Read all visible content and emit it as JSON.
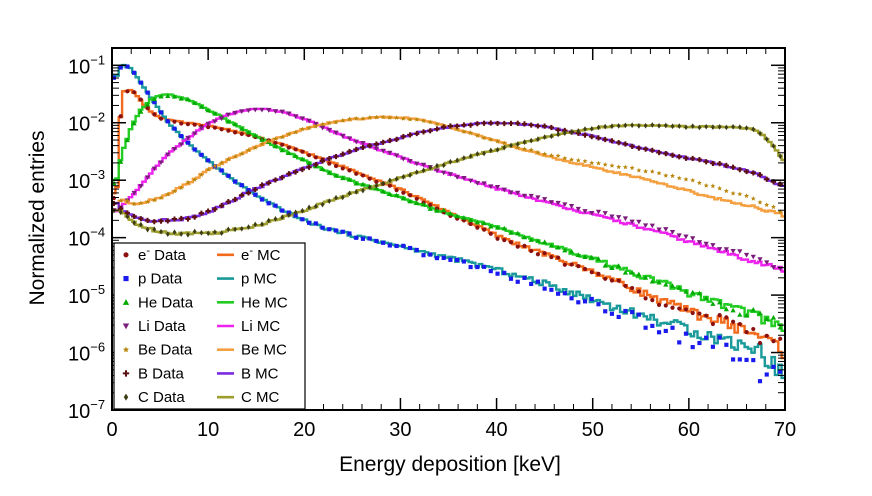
{
  "chart_data": {
    "type": "line",
    "title": "",
    "xlabel": "Energy deposition [keV]",
    "ylabel": "Normalized entries",
    "xlim": [
      0,
      70
    ],
    "ylim": [
      1e-07,
      0.2
    ],
    "yscale": "log",
    "x_ticks": [
      0,
      10,
      20,
      30,
      40,
      50,
      60,
      70
    ],
    "x_tick_labels": [
      "0",
      "10",
      "20",
      "30",
      "40",
      "50",
      "60",
      "70"
    ],
    "y_ticks": [
      1e-07,
      1e-06,
      1e-05,
      0.0001,
      0.001,
      0.01,
      0.1
    ],
    "y_tick_bases": [
      "10",
      "10",
      "10",
      "10",
      "10",
      "10",
      "10"
    ],
    "y_tick_exponents": [
      "−7",
      "−6",
      "−5",
      "−4",
      "−3",
      "−2",
      "−1"
    ],
    "legend_position": "bottom-left",
    "x": [
      0.5,
      1,
      2,
      3,
      4,
      5,
      6,
      8,
      10,
      12,
      14,
      16,
      18,
      20,
      22,
      25,
      28,
      30,
      32,
      35,
      38,
      40,
      42,
      45,
      48,
      50,
      52,
      55,
      58,
      60,
      62,
      65,
      67,
      68,
      69,
      70
    ],
    "series": [
      {
        "name": "e- Data",
        "label_base": "e",
        "label_sup": "-",
        "label_rest": " Data",
        "kind": "data",
        "marker": "circle",
        "color": "#8b1010",
        "values": [
          0.0005,
          0.03,
          0.04,
          0.025,
          0.016,
          0.012,
          0.0105,
          0.0095,
          0.0085,
          0.0075,
          0.0062,
          0.005,
          0.0039,
          0.003,
          0.0022,
          0.0014,
          0.0009,
          0.00065,
          0.00045,
          0.00026,
          0.00015,
          0.0001,
          7.5e-05,
          5e-05,
          3.3e-05,
          2.5e-05,
          1.8e-05,
          1.1e-05,
          7e-06,
          5e-06,
          4.2e-06,
          2.8e-06,
          2.2e-06,
          1.8e-06,
          1.5e-06,
          1.2e-06
        ]
      },
      {
        "name": "p Data",
        "label_base": "p",
        "label_sup": "",
        "label_rest": " Data",
        "kind": "data",
        "marker": "square",
        "color": "#1a1aee",
        "values": [
          0.06,
          0.1,
          0.09,
          0.05,
          0.028,
          0.016,
          0.0095,
          0.0043,
          0.0022,
          0.0012,
          0.0007,
          0.00043,
          0.00029,
          0.0002,
          0.00015,
          0.00011,
          8.5e-05,
          7e-05,
          5.5e-05,
          4.2e-05,
          3.1e-05,
          2.5e-05,
          2e-05,
          1.4e-05,
          9.5e-06,
          7.2e-06,
          5.5e-06,
          3.7e-06,
          2.5e-06,
          1.9e-06,
          1.5e-06,
          1.1e-06,
          7e-07,
          5e-07,
          4e-07,
          2.8e-07
        ]
      },
      {
        "name": "He Data",
        "label_base": "He",
        "label_sup": "",
        "label_rest": " Data",
        "kind": "data",
        "marker": "triangle-up",
        "color": "#00aa00",
        "values": [
          0.0009,
          0.0025,
          0.008,
          0.016,
          0.024,
          0.029,
          0.03,
          0.025,
          0.017,
          0.011,
          0.0072,
          0.0048,
          0.0032,
          0.0022,
          0.0015,
          0.00095,
          0.00065,
          0.0005,
          0.00038,
          0.00027,
          0.00019,
          0.00015,
          0.00012,
          8e-05,
          5.5e-05,
          4.3e-05,
          3.3e-05,
          2.2e-05,
          1.5e-05,
          1.1e-05,
          8.5e-06,
          5.8e-06,
          4.5e-06,
          3.8e-06,
          3.2e-06,
          2.7e-06
        ]
      },
      {
        "name": "Li Data",
        "label_base": "Li",
        "label_sup": "",
        "label_rest": " Data",
        "kind": "data",
        "marker": "triangle-down",
        "color": "#7a1d7a",
        "values": [
          0.0003,
          0.00035,
          0.0005,
          0.0008,
          0.0013,
          0.002,
          0.003,
          0.0055,
          0.0095,
          0.0135,
          0.0165,
          0.017,
          0.015,
          0.0115,
          0.0082,
          0.0051,
          0.0033,
          0.0025,
          0.0019,
          0.0013,
          0.00092,
          0.00075,
          0.0006,
          0.00045,
          0.00034,
          0.00028,
          0.00024,
          0.00018,
          0.00013,
          0.0001,
          7.8e-05,
          5.5e-05,
          4.5e-05,
          3.8e-05,
          3.2e-05,
          2.8e-05
        ]
      },
      {
        "name": "Be Data",
        "label_base": "Be",
        "label_sup": "",
        "label_rest": " Data",
        "kind": "data",
        "marker": "star",
        "color": "#b8860b",
        "values": [
          0.0004,
          0.00045,
          0.0004,
          0.0004,
          0.00045,
          0.0005,
          0.0006,
          0.0009,
          0.0015,
          0.0022,
          0.0032,
          0.0045,
          0.006,
          0.0078,
          0.0095,
          0.0115,
          0.0125,
          0.0123,
          0.0112,
          0.0085,
          0.006,
          0.0048,
          0.0038,
          0.0029,
          0.0023,
          0.002,
          0.0018,
          0.0015,
          0.0012,
          0.001,
          0.00082,
          0.00058,
          0.00045,
          0.00038,
          0.00032,
          0.00027
        ]
      },
      {
        "name": "B Data",
        "label_base": "B",
        "label_sup": "",
        "label_rest": " Data",
        "kind": "data",
        "marker": "cross",
        "color": "#5c1010",
        "values": [
          0.0004,
          0.0003,
          0.00025,
          0.00022,
          0.0002,
          0.0002,
          0.0002,
          0.00022,
          0.00028,
          0.0004,
          0.0006,
          0.00085,
          0.0012,
          0.0016,
          0.0022,
          0.0032,
          0.0045,
          0.0055,
          0.0068,
          0.0085,
          0.0096,
          0.0099,
          0.0097,
          0.0085,
          0.0068,
          0.0058,
          0.0048,
          0.0036,
          0.0028,
          0.0024,
          0.0021,
          0.0016,
          0.0013,
          0.0011,
          0.0009,
          0.00075
        ]
      },
      {
        "name": "C Data",
        "label_base": "C",
        "label_sup": "",
        "label_rest": " Data",
        "kind": "data",
        "marker": "diamond",
        "color": "#3d3d14",
        "values": [
          0.0003,
          0.00028,
          0.0002,
          0.00016,
          0.00014,
          0.00013,
          0.00012,
          0.00012,
          0.00012,
          0.00013,
          0.00015,
          0.00018,
          0.00023,
          0.0003,
          0.0004,
          0.0006,
          0.00085,
          0.0011,
          0.0014,
          0.002,
          0.0028,
          0.0034,
          0.0042,
          0.0056,
          0.007,
          0.008,
          0.0088,
          0.009,
          0.0088,
          0.0085,
          0.0085,
          0.0084,
          0.0075,
          0.0055,
          0.0035,
          0.002
        ]
      },
      {
        "name": "e- MC",
        "label_base": "e",
        "label_sup": "-",
        "label_rest": " MC",
        "kind": "mc",
        "color": "#f26a1b",
        "values": [
          0.0006,
          0.035,
          0.038,
          0.024,
          0.016,
          0.0125,
          0.011,
          0.0098,
          0.0088,
          0.0077,
          0.0064,
          0.0051,
          0.004,
          0.0031,
          0.0023,
          0.0015,
          0.00095,
          0.0007,
          0.00048,
          0.00028,
          0.00016,
          0.00011,
          8e-05,
          5.2e-05,
          3.4e-05,
          2.6e-05,
          1.9e-05,
          1.15e-05,
          7.2e-06,
          5.2e-06,
          4.2e-06,
          2.8e-06,
          2.1e-06,
          1.7e-06,
          1.4e-06,
          1.1e-06
        ]
      },
      {
        "name": "p MC",
        "label_base": "p",
        "label_sup": "",
        "label_rest": " MC",
        "kind": "mc",
        "color": "#1a9a9a",
        "values": [
          0.065,
          0.105,
          0.088,
          0.05,
          0.028,
          0.016,
          0.0095,
          0.0043,
          0.0022,
          0.0012,
          0.0007,
          0.00043,
          0.00029,
          0.0002,
          0.00015,
          0.00011,
          8.5e-05,
          7e-05,
          5.8e-05,
          4.5e-05,
          3.4e-05,
          2.8e-05,
          2.2e-05,
          1.6e-05,
          1.1e-05,
          8.5e-06,
          6.5e-06,
          4.5e-06,
          3.2e-06,
          2.6e-06,
          2e-06,
          1.5e-06,
          1.2e-06,
          9e-07,
          6e-07,
          4e-07
        ]
      },
      {
        "name": "He MC",
        "label_base": "He",
        "label_sup": "",
        "label_rest": " MC",
        "kind": "mc",
        "color": "#22cc22",
        "values": [
          0.001,
          0.0028,
          0.0085,
          0.017,
          0.025,
          0.03,
          0.031,
          0.025,
          0.017,
          0.011,
          0.0072,
          0.0048,
          0.0032,
          0.0022,
          0.0015,
          0.00095,
          0.00065,
          0.0005,
          0.00038,
          0.00027,
          0.00019,
          0.00015,
          0.00012,
          8e-05,
          5.5e-05,
          4.3e-05,
          3.3e-05,
          2.2e-05,
          1.5e-05,
          1.1e-05,
          8.5e-06,
          5.8e-06,
          4.5e-06,
          3.8e-06,
          3.2e-06,
          2.7e-06
        ]
      },
      {
        "name": "Li MC",
        "label_base": "Li",
        "label_sup": "",
        "label_rest": " MC",
        "kind": "mc",
        "color": "#ee22ee",
        "values": [
          0.0003,
          0.00035,
          0.0005,
          0.0008,
          0.0013,
          0.002,
          0.003,
          0.0056,
          0.0096,
          0.0137,
          0.0168,
          0.0172,
          0.0152,
          0.0117,
          0.0083,
          0.0051,
          0.0033,
          0.0025,
          0.0019,
          0.0013,
          0.0009,
          0.00072,
          0.00058,
          0.00042,
          0.00031,
          0.00025,
          0.00021,
          0.00015,
          0.00011,
          8.5e-05,
          6.8e-05,
          4.8e-05,
          3.8e-05,
          3.4e-05,
          3e-05,
          2.7e-05
        ]
      },
      {
        "name": "Be MC",
        "label_base": "Be",
        "label_sup": "",
        "label_rest": " MC",
        "kind": "mc",
        "color": "#f5a040",
        "values": [
          0.0004,
          0.00045,
          0.0004,
          0.0004,
          0.00045,
          0.0005,
          0.0006,
          0.0009,
          0.0015,
          0.0022,
          0.0032,
          0.0045,
          0.006,
          0.0078,
          0.0095,
          0.0115,
          0.0125,
          0.0124,
          0.0113,
          0.0086,
          0.0061,
          0.0048,
          0.0037,
          0.0027,
          0.002,
          0.0017,
          0.0014,
          0.0011,
          0.0008,
          0.00065,
          0.00052,
          0.0004,
          0.00034,
          0.0003,
          0.00027,
          0.00024
        ]
      },
      {
        "name": "B MC",
        "label_base": "B",
        "label_sup": "",
        "label_rest": " MC",
        "kind": "mc",
        "color": "#7b2be2",
        "values": [
          0.0004,
          0.0003,
          0.00025,
          0.00022,
          0.0002,
          0.0002,
          0.0002,
          0.00022,
          0.00028,
          0.0004,
          0.0006,
          0.00085,
          0.0012,
          0.0016,
          0.0022,
          0.0032,
          0.0045,
          0.0055,
          0.0068,
          0.0085,
          0.0096,
          0.0099,
          0.0097,
          0.0085,
          0.0068,
          0.0058,
          0.0048,
          0.0036,
          0.0028,
          0.0024,
          0.0021,
          0.0016,
          0.0013,
          0.0011,
          0.0009,
          0.00075
        ]
      },
      {
        "name": "C MC",
        "label_base": "C",
        "label_sup": "",
        "label_rest": " MC",
        "kind": "mc",
        "color": "#9e9e2e",
        "values": [
          0.0003,
          0.00028,
          0.0002,
          0.00016,
          0.00014,
          0.00013,
          0.00012,
          0.00012,
          0.00012,
          0.00013,
          0.00015,
          0.00018,
          0.00023,
          0.0003,
          0.0004,
          0.0006,
          0.00085,
          0.0011,
          0.0014,
          0.002,
          0.0028,
          0.0034,
          0.0042,
          0.0056,
          0.007,
          0.008,
          0.0088,
          0.009,
          0.0088,
          0.0085,
          0.0085,
          0.0084,
          0.0075,
          0.0055,
          0.0035,
          0.002
        ]
      }
    ]
  }
}
